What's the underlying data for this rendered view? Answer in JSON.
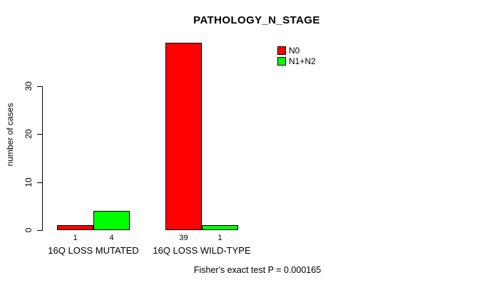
{
  "chart_data": {
    "type": "bar",
    "title": "PATHOLOGY_N_STAGE",
    "ylabel": "number of cases",
    "xlabel": "",
    "categories": [
      "16Q LOSS MUTATED",
      "16Q LOSS WILD-TYPE"
    ],
    "series": [
      {
        "name": "N0",
        "color": "#FF0000",
        "values": [
          1,
          39
        ]
      },
      {
        "name": "N1+N2",
        "color": "#00FF00",
        "values": [
          4,
          1
        ]
      }
    ],
    "yticks": [
      0,
      10,
      20,
      30
    ],
    "ylim": [
      0,
      39
    ],
    "grid": false,
    "legend_position": "top-right",
    "bar_value_labels": [
      [
        "1",
        "39"
      ],
      [
        "4",
        "1"
      ]
    ],
    "footnote": "Fisher's exact test P = 0.000165",
    "axis_color": "#000000",
    "background_color": "#FFFFFF"
  }
}
